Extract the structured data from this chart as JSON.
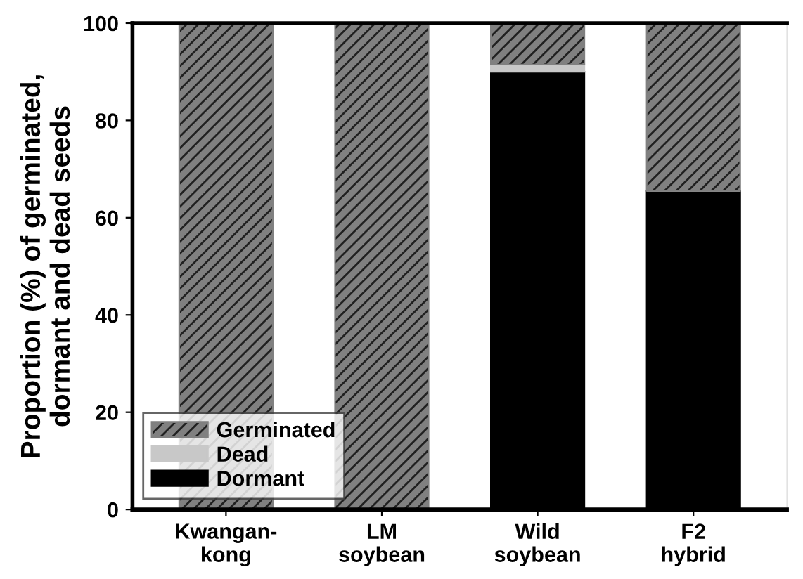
{
  "chart_data": {
    "type": "bar",
    "stacked": true,
    "ylabel": "Proportion (%) of germinated,\ndormant and dead seeds",
    "categories": [
      "Kwangan-\nkong",
      "LM\nsoybean",
      "Wild\nsoybean",
      "F2\nhybrid"
    ],
    "series": [
      {
        "name": "Dormant",
        "color": "#000000",
        "values": [
          0,
          0,
          90,
          65.5
        ]
      },
      {
        "name": "Dead",
        "color": "#c8c8c8",
        "values": [
          0,
          0,
          1.5,
          0
        ]
      },
      {
        "name": "Germinated",
        "color": "#808080",
        "values": [
          100,
          100,
          8.5,
          34.5
        ]
      }
    ],
    "ylim": [
      0,
      100
    ],
    "yticks": [
      0,
      20,
      40,
      60,
      80,
      100
    ],
    "legend": "bottom left",
    "grid": false
  }
}
